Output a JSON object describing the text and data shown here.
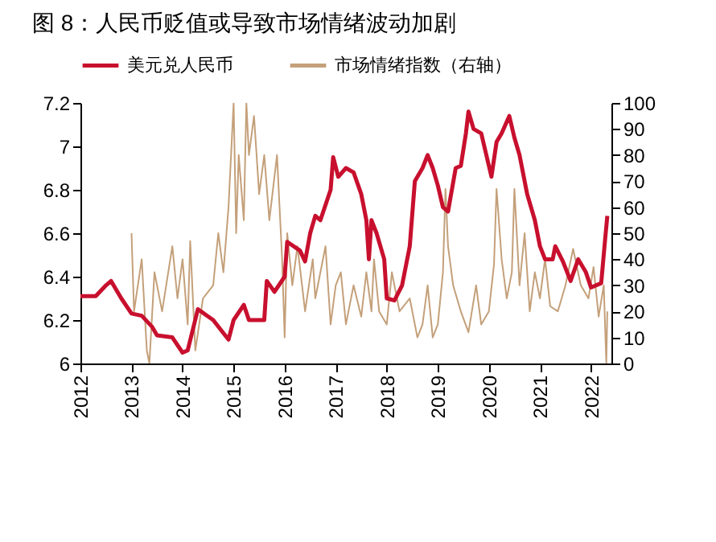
{
  "chart_data": {
    "type": "line",
    "title": "图 8：人民币贬值或导致市场情绪波动加剧",
    "legend": "top",
    "grid": false,
    "xlim": [
      2012,
      2022.4
    ],
    "xticks": [
      2012,
      2013,
      2014,
      2015,
      2016,
      2017,
      2018,
      2019,
      2020,
      2021,
      2022
    ],
    "ylim": [
      6,
      7.2
    ],
    "yticks": [
      6,
      6.2,
      6.4,
      6.6,
      6.8,
      7,
      7.2
    ],
    "y2lim": [
      0,
      100
    ],
    "y2ticks": [
      0,
      10,
      20,
      30,
      40,
      50,
      60,
      70,
      80,
      90,
      100
    ],
    "series": [
      {
        "name": "美元兑人民币",
        "color": "#c8102e",
        "x": [
          2012,
          2012.3,
          2012.5,
          2012.6,
          2012.8,
          2013,
          2013.2,
          2013.4,
          2013.5,
          2013.8,
          2014,
          2014.1,
          2014.3,
          2014.6,
          2014.8,
          2014.9,
          2015,
          2015.2,
          2015.3,
          2015.6,
          2015.65,
          2015.8,
          2016,
          2016.05,
          2016.3,
          2016.4,
          2016.5,
          2016.6,
          2016.7,
          2016.9,
          2016.95,
          2017.05,
          2017.2,
          2017.35,
          2017.5,
          2017.6,
          2017.65,
          2017.7,
          2017.8,
          2017.95,
          2018,
          2018.15,
          2018.3,
          2018.45,
          2018.55,
          2018.7,
          2018.8,
          2018.9,
          2019,
          2019.1,
          2019.2,
          2019.35,
          2019.45,
          2019.55,
          2019.6,
          2019.7,
          2019.85,
          2019.95,
          2020.05,
          2020.15,
          2020.25,
          2020.4,
          2020.5,
          2020.6,
          2020.75,
          2020.9,
          2021,
          2021.1,
          2021.25,
          2021.3,
          2021.45,
          2021.6,
          2021.75,
          2021.9,
          2022,
          2022.2,
          2022.28,
          2022.32
        ],
        "values": [
          6.31,
          6.31,
          6.36,
          6.38,
          6.3,
          6.23,
          6.22,
          6.17,
          6.13,
          6.12,
          6.05,
          6.06,
          6.25,
          6.2,
          6.14,
          6.11,
          6.2,
          6.27,
          6.2,
          6.2,
          6.38,
          6.33,
          6.4,
          6.56,
          6.52,
          6.47,
          6.6,
          6.68,
          6.66,
          6.8,
          6.95,
          6.86,
          6.9,
          6.88,
          6.78,
          6.66,
          6.48,
          6.66,
          6.6,
          6.48,
          6.3,
          6.29,
          6.36,
          6.54,
          6.84,
          6.9,
          6.96,
          6.9,
          6.82,
          6.72,
          6.7,
          6.9,
          6.91,
          7.06,
          7.16,
          7.08,
          7.06,
          6.96,
          6.86,
          7.02,
          7.06,
          7.14,
          7.04,
          6.96,
          6.78,
          6.66,
          6.54,
          6.48,
          6.48,
          6.54,
          6.47,
          6.38,
          6.48,
          6.42,
          6.35,
          6.37,
          6.58,
          6.68
        ]
      },
      {
        "name": "市场情绪指数（右轴）",
        "color": "#c4a07a",
        "axis": "y2",
        "x": [
          2013,
          2013.05,
          2013.2,
          2013.3,
          2013.35,
          2013.45,
          2013.6,
          2013.8,
          2013.9,
          2014,
          2014.1,
          2014.15,
          2014.25,
          2014.4,
          2014.6,
          2014.7,
          2014.8,
          2014.9,
          2015,
          2015.05,
          2015.1,
          2015.2,
          2015.25,
          2015.3,
          2015.4,
          2015.5,
          2015.6,
          2015.7,
          2015.85,
          2015.95,
          2016,
          2016.05,
          2016.15,
          2016.25,
          2016.4,
          2016.55,
          2016.6,
          2016.8,
          2016.9,
          2017,
          2017.1,
          2017.2,
          2017.35,
          2017.5,
          2017.6,
          2017.7,
          2017.75,
          2017.85,
          2018,
          2018.1,
          2018.25,
          2018.45,
          2018.6,
          2018.7,
          2018.8,
          2018.9,
          2019,
          2019.1,
          2019.15,
          2019.2,
          2019.3,
          2019.45,
          2019.6,
          2019.75,
          2019.85,
          2020,
          2020.1,
          2020.15,
          2020.25,
          2020.35,
          2020.45,
          2020.5,
          2020.6,
          2020.7,
          2020.8,
          2020.9,
          2021,
          2021.1,
          2021.2,
          2021.35,
          2021.5,
          2021.65,
          2021.8,
          2021.95,
          2022.05,
          2022.15,
          2022.25,
          2022.3,
          2022.32
        ],
        "values": [
          50,
          20,
          40,
          5,
          0,
          35,
          20,
          45,
          25,
          40,
          15,
          47,
          5,
          25,
          30,
          50,
          35,
          60,
          100,
          50,
          80,
          55,
          100,
          80,
          95,
          65,
          80,
          55,
          80,
          40,
          10,
          50,
          30,
          45,
          20,
          40,
          25,
          45,
          15,
          30,
          35,
          15,
          30,
          18,
          35,
          20,
          40,
          20,
          15,
          35,
          20,
          25,
          10,
          15,
          30,
          10,
          15,
          35,
          67,
          45,
          30,
          20,
          12,
          30,
          15,
          20,
          38,
          67,
          40,
          25,
          35,
          67,
          30,
          50,
          20,
          35,
          25,
          40,
          22,
          20,
          30,
          44,
          30,
          25,
          37,
          18,
          30,
          0,
          20
        ]
      }
    ]
  }
}
